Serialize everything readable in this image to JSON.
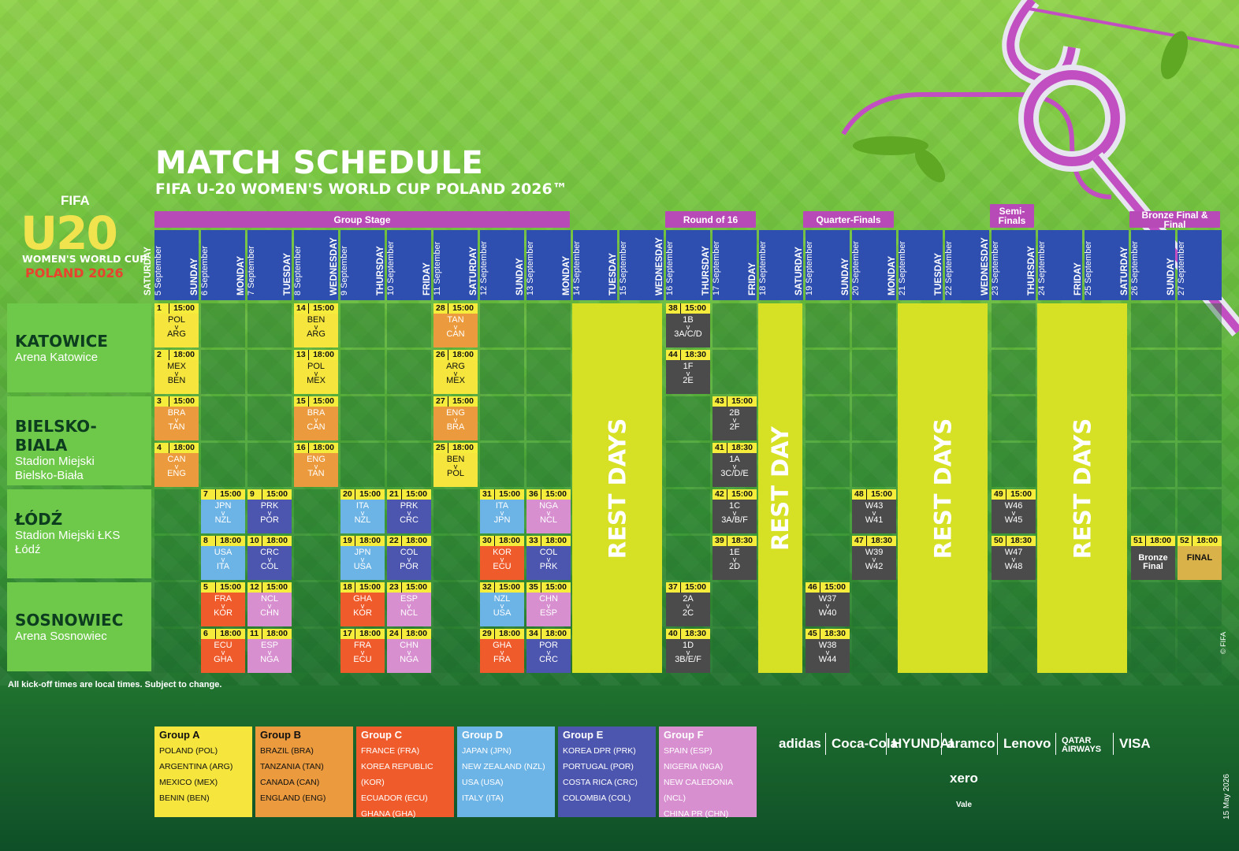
{
  "title": "MATCH SCHEDULE",
  "subtitle": "FIFA U-20 WOMEN'S WORLD CUP POLAND 2026™",
  "logo": {
    "fifa": "FIFA",
    "number": "U20",
    "line1": "WOMEN'S WORLD CUP",
    "line2": "POLAND 2026"
  },
  "stages": {
    "group": "Group Stage",
    "r16": "Round of 16",
    "qf": "Quarter-Finals",
    "sf": "Semi-Finals",
    "final": "Bronze Final & Final"
  },
  "days": [
    {
      "name": "SATURDAY",
      "date": "5 September"
    },
    {
      "name": "SUNDAY",
      "date": "6 September"
    },
    {
      "name": "MONDAY",
      "date": "7 September"
    },
    {
      "name": "TUESDAY",
      "date": "8 September"
    },
    {
      "name": "WEDNESDAY",
      "date": "9 September"
    },
    {
      "name": "THURSDAY",
      "date": "10 September"
    },
    {
      "name": "FRIDAY",
      "date": "11 September"
    },
    {
      "name": "SATURDAY",
      "date": "12 September"
    },
    {
      "name": "SUNDAY",
      "date": "13 September"
    },
    {
      "name": "MONDAY",
      "date": "14 September"
    },
    {
      "name": "TUESDAY",
      "date": "15 September"
    },
    {
      "name": "WEDNESDAY",
      "date": "16 September"
    },
    {
      "name": "THURSDAY",
      "date": "17 September"
    },
    {
      "name": "FRIDAY",
      "date": "18 September"
    },
    {
      "name": "SATURDAY",
      "date": "19 September"
    },
    {
      "name": "SUNDAY",
      "date": "20 September"
    },
    {
      "name": "MONDAY",
      "date": "21 September"
    },
    {
      "name": "TUESDAY",
      "date": "22 September"
    },
    {
      "name": "WEDNESDAY",
      "date": "23 September"
    },
    {
      "name": "THURSDAY",
      "date": "24 September"
    },
    {
      "name": "FRIDAY",
      "date": "25 September"
    },
    {
      "name": "SATURDAY",
      "date": "26 September"
    },
    {
      "name": "SUNDAY",
      "date": "27 September"
    }
  ],
  "venues": [
    {
      "city": "KATOWICE",
      "stadium": "Arena Katowice"
    },
    {
      "city": "BIELSKO-BIALA",
      "stadium": "Stadion Miejski Bielsko-Biała"
    },
    {
      "city": "ŁÓDŹ",
      "stadium": "Stadion Miejski ŁKS Łódź"
    },
    {
      "city": "SOSNOWIEC",
      "stadium": "Arena Sosnowiec"
    }
  ],
  "rest": {
    "days": "REST DAYS",
    "day": "REST DAY"
  },
  "matches": [
    {
      "no": "1",
      "time": "15:00",
      "a": "POL",
      "b": "ARG",
      "g": "A",
      "d": 0,
      "r": 0
    },
    {
      "no": "2",
      "time": "18:00",
      "a": "MEX",
      "b": "BEN",
      "g": "A",
      "d": 0,
      "r": 1
    },
    {
      "no": "3",
      "time": "15:00",
      "a": "BRA",
      "b": "TAN",
      "g": "B",
      "d": 0,
      "r": 2
    },
    {
      "no": "4",
      "time": "18:00",
      "a": "CAN",
      "b": "ENG",
      "g": "B",
      "d": 0,
      "r": 3
    },
    {
      "no": "7",
      "time": "15:00",
      "a": "JPN",
      "b": "NZL",
      "g": "D",
      "d": 1,
      "r": 4
    },
    {
      "no": "8",
      "time": "18:00",
      "a": "USA",
      "b": "ITA",
      "g": "D",
      "d": 1,
      "r": 5
    },
    {
      "no": "5",
      "time": "15:00",
      "a": "FRA",
      "b": "KOR",
      "g": "C",
      "d": 1,
      "r": 6
    },
    {
      "no": "6",
      "time": "18:00",
      "a": "ECU",
      "b": "GHA",
      "g": "C",
      "d": 1,
      "r": 7
    },
    {
      "no": "9",
      "time": "15:00",
      "a": "PRK",
      "b": "POR",
      "g": "E",
      "d": 2,
      "r": 4
    },
    {
      "no": "10",
      "time": "18:00",
      "a": "CRC",
      "b": "COL",
      "g": "E",
      "d": 2,
      "r": 5
    },
    {
      "no": "12",
      "time": "15:00",
      "a": "NCL",
      "b": "CHN",
      "g": "F",
      "d": 2,
      "r": 6
    },
    {
      "no": "11",
      "time": "18:00",
      "a": "ESP",
      "b": "NGA",
      "g": "F",
      "d": 2,
      "r": 7
    },
    {
      "no": "14",
      "time": "15:00",
      "a": "BEN",
      "b": "ARG",
      "g": "A",
      "d": 3,
      "r": 0
    },
    {
      "no": "13",
      "time": "18:00",
      "a": "POL",
      "b": "MEX",
      "g": "A",
      "d": 3,
      "r": 1
    },
    {
      "no": "15",
      "time": "15:00",
      "a": "BRA",
      "b": "CAN",
      "g": "B",
      "d": 3,
      "r": 2
    },
    {
      "no": "16",
      "time": "18:00",
      "a": "ENG",
      "b": "TAN",
      "g": "B",
      "d": 3,
      "r": 3
    },
    {
      "no": "20",
      "time": "15:00",
      "a": "ITA",
      "b": "NZL",
      "g": "D",
      "d": 4,
      "r": 4
    },
    {
      "no": "19",
      "time": "18:00",
      "a": "JPN",
      "b": "USA",
      "g": "D",
      "d": 4,
      "r": 5
    },
    {
      "no": "18",
      "time": "15:00",
      "a": "GHA",
      "b": "KOR",
      "g": "C",
      "d": 4,
      "r": 6
    },
    {
      "no": "17",
      "time": "18:00",
      "a": "FRA",
      "b": "ECU",
      "g": "C",
      "d": 4,
      "r": 7
    },
    {
      "no": "21",
      "time": "15:00",
      "a": "PRK",
      "b": "CRC",
      "g": "E",
      "d": 5,
      "r": 4
    },
    {
      "no": "22",
      "time": "18:00",
      "a": "COL",
      "b": "POR",
      "g": "E",
      "d": 5,
      "r": 5
    },
    {
      "no": "23",
      "time": "15:00",
      "a": "ESP",
      "b": "NCL",
      "g": "F",
      "d": 5,
      "r": 6
    },
    {
      "no": "24",
      "time": "18:00",
      "a": "CHN",
      "b": "NGA",
      "g": "F",
      "d": 5,
      "r": 7
    },
    {
      "no": "28",
      "time": "15:00",
      "a": "TAN",
      "b": "CAN",
      "g": "B",
      "d": 6,
      "r": 0
    },
    {
      "no": "26",
      "time": "18:00",
      "a": "ARG",
      "b": "MEX",
      "g": "A",
      "d": 6,
      "r": 1
    },
    {
      "no": "27",
      "time": "15:00",
      "a": "ENG",
      "b": "BRA",
      "g": "B",
      "d": 6,
      "r": 2
    },
    {
      "no": "25",
      "time": "18:00",
      "a": "BEN",
      "b": "POL",
      "g": "A",
      "d": 6,
      "r": 3
    },
    {
      "no": "31",
      "time": "15:00",
      "a": "ITA",
      "b": "JPN",
      "g": "D",
      "d": 7,
      "r": 4
    },
    {
      "no": "30",
      "time": "18:00",
      "a": "KOR",
      "b": "ECU",
      "g": "C",
      "d": 7,
      "r": 5
    },
    {
      "no": "32",
      "time": "15:00",
      "a": "NZL",
      "b": "USA",
      "g": "D",
      "d": 7,
      "r": 6
    },
    {
      "no": "29",
      "time": "18:00",
      "a": "GHA",
      "b": "FRA",
      "g": "C",
      "d": 7,
      "r": 7
    },
    {
      "no": "36",
      "time": "15:00",
      "a": "NGA",
      "b": "NCL",
      "g": "F",
      "d": 8,
      "r": 4
    },
    {
      "no": "33",
      "time": "18:00",
      "a": "COL",
      "b": "PRK",
      "g": "E",
      "d": 8,
      "r": 5
    },
    {
      "no": "35",
      "time": "15:00",
      "a": "CHN",
      "b": "ESP",
      "g": "F",
      "d": 8,
      "r": 6
    },
    {
      "no": "34",
      "time": "18:00",
      "a": "POR",
      "b": "CRC",
      "g": "E",
      "d": 8,
      "r": 7
    },
    {
      "no": "38",
      "time": "15:00",
      "a": "1B",
      "b": "3A/C/D",
      "g": "K",
      "d": 11,
      "r": 0
    },
    {
      "no": "44",
      "time": "18:30",
      "a": "1F",
      "b": "2E",
      "g": "K",
      "d": 11,
      "r": 1
    },
    {
      "no": "37",
      "time": "15:00",
      "a": "2A",
      "b": "2C",
      "g": "K",
      "d": 11,
      "r": 6
    },
    {
      "no": "40",
      "time": "18:30",
      "a": "1D",
      "b": "3B/E/F",
      "g": "K",
      "d": 11,
      "r": 7
    },
    {
      "no": "43",
      "time": "15:00",
      "a": "2B",
      "b": "2F",
      "g": "K",
      "d": 12,
      "r": 2
    },
    {
      "no": "41",
      "time": "18:30",
      "a": "1A",
      "b": "3C/D/E",
      "g": "K",
      "d": 12,
      "r": 3
    },
    {
      "no": "42",
      "time": "15:00",
      "a": "1C",
      "b": "3A/B/F",
      "g": "K",
      "d": 12,
      "r": 4
    },
    {
      "no": "39",
      "time": "18:30",
      "a": "1E",
      "b": "2D",
      "g": "K",
      "d": 12,
      "r": 5
    },
    {
      "no": "46",
      "time": "15:00",
      "a": "W37",
      "b": "W40",
      "g": "K",
      "d": 14,
      "r": 6
    },
    {
      "no": "45",
      "time": "18:30",
      "a": "W38",
      "b": "W44",
      "g": "K",
      "d": 14,
      "r": 7
    },
    {
      "no": "48",
      "time": "15:00",
      "a": "W43",
      "b": "W41",
      "g": "K",
      "d": 15,
      "r": 4
    },
    {
      "no": "47",
      "time": "18:30",
      "a": "W39",
      "b": "W42",
      "g": "K",
      "d": 15,
      "r": 5
    },
    {
      "no": "49",
      "time": "15:00",
      "a": "W46",
      "b": "W45",
      "g": "K",
      "d": 18,
      "r": 4
    },
    {
      "no": "50",
      "time": "18:30",
      "a": "W47",
      "b": "W48",
      "g": "K",
      "d": 18,
      "r": 5
    },
    {
      "no": "51",
      "time": "18:00",
      "a": "Bronze Final",
      "b": "",
      "g": "K",
      "d": 21,
      "r": 5
    },
    {
      "no": "52",
      "time": "18:00",
      "a": "FINAL",
      "b": "",
      "g": "F1",
      "d": 22,
      "r": 5
    }
  ],
  "colors": {
    "A": "#f5e53c",
    "B": "#eb9a3e",
    "C": "#ef5b2b",
    "D": "#6cb3e6",
    "E": "#4d56ae",
    "F": "#d78fd0",
    "K": "#4b4b4b",
    "F1": "#d9b24a"
  },
  "note": "All kick-off times are local times. Subject to change.",
  "groups": [
    {
      "name": "Group A",
      "teams": [
        "POLAND (POL)",
        "ARGENTINA (ARG)",
        "MEXICO (MEX)",
        "BENIN (BEN)"
      ],
      "color": "#f5e53c",
      "text": "#111"
    },
    {
      "name": "Group B",
      "teams": [
        "BRAZIL (BRA)",
        "TANZANIA (TAN)",
        "CANADA (CAN)",
        "ENGLAND (ENG)"
      ],
      "color": "#eb9a3e",
      "text": "#111"
    },
    {
      "name": "Group C",
      "teams": [
        "FRANCE (FRA)",
        "KOREA REPUBLIC (KOR)",
        "ECUADOR (ECU)",
        "GHANA (GHA)"
      ],
      "color": "#ef5b2b",
      "text": "#fff"
    },
    {
      "name": "Group D",
      "teams": [
        "JAPAN (JPN)",
        "NEW ZEALAND (NZL)",
        "USA (USA)",
        "ITALY (ITA)"
      ],
      "color": "#6cb3e6",
      "text": "#fff"
    },
    {
      "name": "Group E",
      "teams": [
        "KOREA DPR (PRK)",
        "PORTUGAL (POR)",
        "COSTA RICA (CRC)",
        "COLOMBIA (COL)"
      ],
      "color": "#4d56ae",
      "text": "#fff"
    },
    {
      "name": "Group F",
      "teams": [
        "SPAIN (ESP)",
        "NIGERIA (NGA)",
        "NEW CALEDONIA (NCL)",
        "CHINA PR (CHN)"
      ],
      "color": "#d78fd0",
      "text": "#fff"
    }
  ],
  "sponsors": [
    "adidas",
    "Coca-Cola",
    "HYUNDAI",
    "aramco",
    "Lenovo",
    "QATAR AIRWAYS",
    "VISA"
  ],
  "sponsor_extra": {
    "xero": "xero",
    "vale": "Vale"
  },
  "copyright": "© FIFA",
  "date_stamp": "15 May 2026"
}
